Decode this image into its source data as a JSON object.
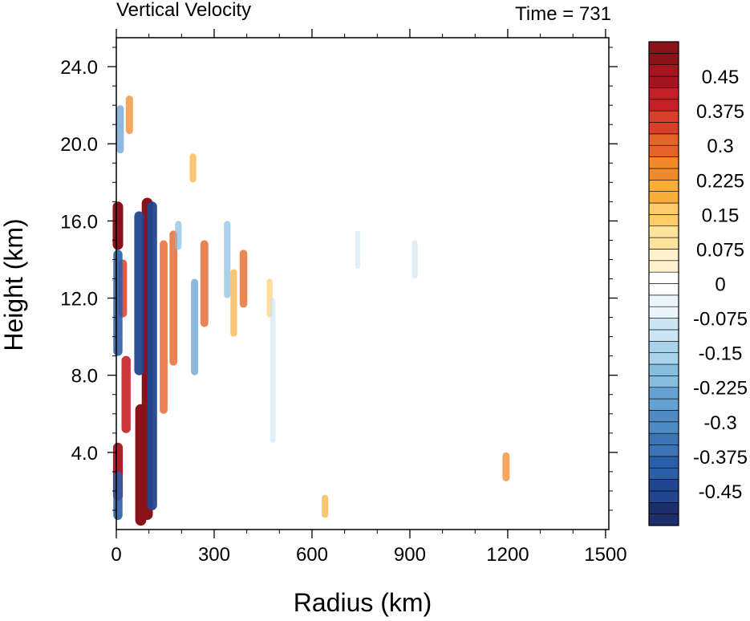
{
  "chart_data": {
    "type": "heatmap",
    "title_left": "Vertical Velocity",
    "title_right": "Time = 731",
    "xlabel": "Radius (km)",
    "ylabel": "Height (km)",
    "xlim": [
      0,
      1510
    ],
    "ylim": [
      0,
      25.5
    ],
    "xticks": [
      0,
      300,
      600,
      900,
      1200,
      1500
    ],
    "xtick_labels": [
      "0",
      "300",
      "600",
      "900",
      "1200",
      "1500"
    ],
    "yticks": [
      4,
      8,
      12,
      16,
      20,
      24
    ],
    "ytick_labels": [
      "4.0",
      "8.0",
      "12.0",
      "16.0",
      "20.0",
      "24.0"
    ],
    "grid": false,
    "colorbar": {
      "placement": "right",
      "min": -0.525,
      "max": 0.525,
      "step": 0.025,
      "labels": [
        "0.45",
        "0.375",
        "0.3",
        "0.225",
        "0.15",
        "0.075",
        "0",
        "-0.075",
        "-0.15",
        "-0.225",
        "-0.3",
        "-0.375",
        "-0.45"
      ],
      "label_values": [
        0.45,
        0.375,
        0.3,
        0.225,
        0.15,
        0.075,
        0,
        -0.075,
        -0.15,
        -0.225,
        -0.3,
        -0.375,
        -0.45
      ],
      "colors": [
        "#1c2f6a",
        "#21468f",
        "#2a5ea8",
        "#3b75b6",
        "#4e8bc4",
        "#65a2d2",
        "#86bde0",
        "#a9d3eb",
        "#cce5f3",
        "#ebf5fa",
        "#ffffff",
        "#fff2cc",
        "#fee39a",
        "#fdcb6a",
        "#fbad3c",
        "#f28a2a",
        "#e56425",
        "#d8402a",
        "#c42127",
        "#a5151f",
        "#8a1218"
      ]
    },
    "features": [
      {
        "kind": "updraft",
        "r": 95,
        "z0": 0.5,
        "z1": 17.2,
        "w": 0.55
      },
      {
        "kind": "updraft",
        "r": 75,
        "z0": 0.2,
        "z1": 6.5,
        "w": 0.55
      },
      {
        "kind": "updraft",
        "r": 5,
        "z0": 1.5,
        "z1": 4.5,
        "w": 0.45
      },
      {
        "kind": "updraft",
        "r": 5,
        "z0": 14.5,
        "z1": 17.0,
        "w": 0.5
      },
      {
        "kind": "updraft",
        "r": 30,
        "z0": 5.0,
        "z1": 9.0,
        "w": 0.4
      },
      {
        "kind": "updraft",
        "r": 20,
        "z0": 11.0,
        "z1": 14.0,
        "w": 0.35
      },
      {
        "kind": "updraft",
        "r": 145,
        "z0": 6.0,
        "z1": 15.0,
        "w": 0.3
      },
      {
        "kind": "updraft",
        "r": 175,
        "z0": 8.5,
        "z1": 15.5,
        "w": 0.3
      },
      {
        "kind": "updraft",
        "r": 270,
        "z0": 10.5,
        "z1": 15.0,
        "w": 0.3
      },
      {
        "kind": "updraft",
        "r": 390,
        "z0": 11.5,
        "z1": 14.5,
        "w": 0.28
      },
      {
        "kind": "updraft",
        "r": 360,
        "z0": 10.0,
        "z1": 13.5,
        "w": 0.2
      },
      {
        "kind": "updraft",
        "r": 235,
        "z0": 18.0,
        "z1": 19.5,
        "w": 0.2
      },
      {
        "kind": "updraft",
        "r": 40,
        "z0": 20.5,
        "z1": 22.5,
        "w": 0.25
      },
      {
        "kind": "updraft",
        "r": 1195,
        "z0": 2.5,
        "z1": 4.0,
        "w": 0.25
      },
      {
        "kind": "updraft",
        "r": 640,
        "z0": 0.6,
        "z1": 1.8,
        "w": 0.2
      },
      {
        "kind": "updraft",
        "r": 470,
        "z0": 11.0,
        "z1": 13.0,
        "w": 0.15
      },
      {
        "kind": "downdraft",
        "r": 70,
        "z0": 8.0,
        "z1": 16.5,
        "w": -0.45
      },
      {
        "kind": "downdraft",
        "r": 110,
        "z0": 1.0,
        "z1": 17.0,
        "w": -0.45
      },
      {
        "kind": "downdraft",
        "r": 5,
        "z0": 9.0,
        "z1": 14.5,
        "w": -0.4
      },
      {
        "kind": "downdraft",
        "r": 5,
        "z0": 0.5,
        "z1": 3.0,
        "w": -0.4
      },
      {
        "kind": "downdraft",
        "r": 12,
        "z0": 19.5,
        "z1": 22.0,
        "w": -0.25
      },
      {
        "kind": "downdraft",
        "r": 240,
        "z0": 8.0,
        "z1": 13.0,
        "w": -0.25
      },
      {
        "kind": "downdraft",
        "r": 190,
        "z0": 14.5,
        "z1": 16.0,
        "w": -0.2
      },
      {
        "kind": "downdraft",
        "r": 340,
        "z0": 12.0,
        "z1": 16.0,
        "w": -0.2
      },
      {
        "kind": "downdraft",
        "r": 480,
        "z0": 4.5,
        "z1": 12.0,
        "w": -0.12
      },
      {
        "kind": "downdraft",
        "r": 915,
        "z0": 13.0,
        "z1": 15.0,
        "w": -0.12
      },
      {
        "kind": "downdraft",
        "r": 740,
        "z0": 13.5,
        "z1": 15.5,
        "w": -0.08
      }
    ]
  }
}
